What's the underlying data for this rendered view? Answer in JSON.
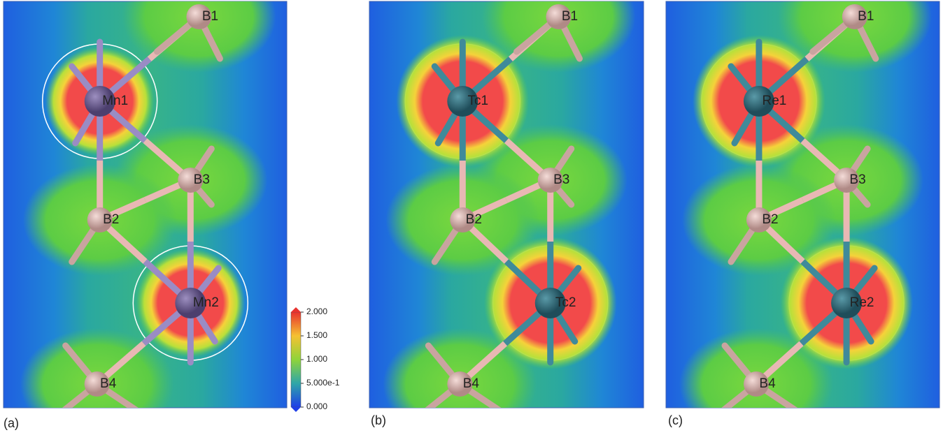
{
  "panels": [
    {
      "label": "(a)",
      "atoms": [
        "B1",
        "Mn1",
        "B3",
        "B2",
        "Mn2",
        "B4"
      ]
    },
    {
      "label": "(b)",
      "atoms": [
        "B1",
        "Tc1",
        "B3",
        "B2",
        "Tc2",
        "B4"
      ]
    },
    {
      "label": "(c)",
      "atoms": [
        "B1",
        "Re1",
        "B3",
        "B2",
        "Re2",
        "B4"
      ]
    }
  ],
  "colorbar": {
    "range": [
      0,
      2
    ],
    "ticks": [
      {
        "value": 2,
        "label": "2.000"
      },
      {
        "value": 1.5,
        "label": "1.500"
      },
      {
        "value": 1,
        "label": "1.000"
      },
      {
        "value": 0.5,
        "label": "5.000e-1"
      },
      {
        "value": 0,
        "label": "0.000"
      }
    ]
  }
}
